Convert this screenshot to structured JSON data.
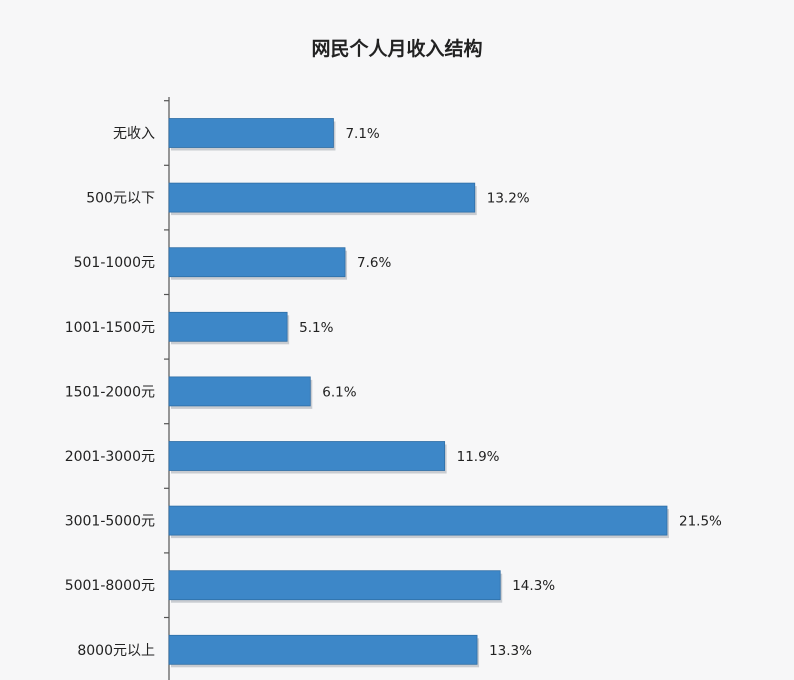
{
  "colors": {
    "bar_fill": "#3d87c8",
    "bar_edge": "#2f6ea6",
    "bar_shadow": "#c9ccd1",
    "axis": "#555555",
    "background": "#f7f7f8"
  },
  "chart_data": {
    "type": "bar",
    "orientation": "horizontal",
    "title": "网民个人月收入结构",
    "xlabel": "",
    "ylabel": "",
    "xlim": [
      0,
      25
    ],
    "grid": false,
    "legend": "none",
    "categories": [
      "无收入",
      "500元以下",
      "501-1000元",
      "1001-1500元",
      "1501-2000元",
      "2001-3000元",
      "3001-5000元",
      "5001-8000元",
      "8000元以上"
    ],
    "values": [
      7.1,
      13.2,
      7.6,
      5.1,
      6.1,
      11.9,
      21.5,
      14.3,
      13.3
    ],
    "value_labels": [
      "7.1%",
      "13.2%",
      "7.6%",
      "5.1%",
      "6.1%",
      "11.9%",
      "21.5%",
      "14.3%",
      "13.3%"
    ]
  }
}
